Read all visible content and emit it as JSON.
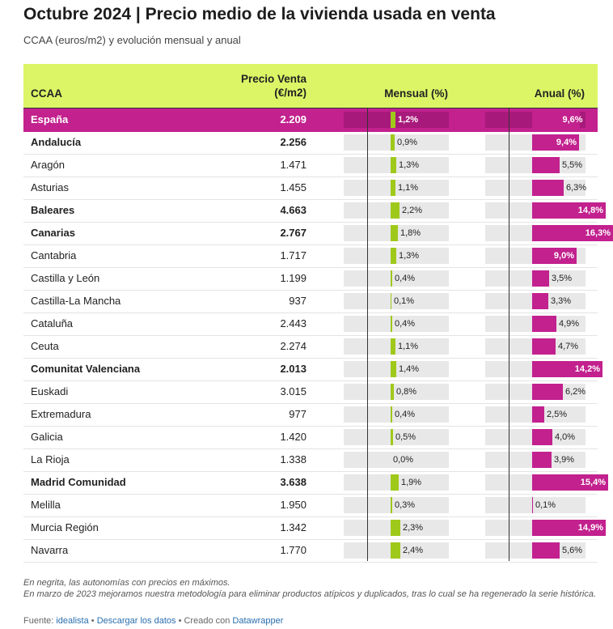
{
  "title": "Octubre 2024 | Precio medio de la vivienda usada en venta",
  "subtitle": "CCAA (euros/m2) y evolución mensual y anual",
  "columns": {
    "ccaa": "CCAA",
    "price_line1": "Precio Venta",
    "price_line2": "(€/m2)",
    "mensual": "Mensual (%)",
    "anual": "Anual (%)"
  },
  "colors": {
    "header_bg": "#dcf566",
    "highlight": "#c2218e",
    "mensual_bar": "#9fc91a",
    "anual_bar": "#c2218e"
  },
  "chart_data": {
    "type": "table",
    "scales": {
      "mensual_max": 2.4,
      "anual_max": 16.3
    },
    "rows": [
      {
        "ccaa": "España",
        "price": "2.209",
        "mensual": 1.2,
        "mensual_label": "1,2%",
        "anual": 9.6,
        "anual_label": "9,6%",
        "bold": true,
        "highlight": true
      },
      {
        "ccaa": "Andalucía",
        "price": "2.256",
        "mensual": 0.9,
        "mensual_label": "0,9%",
        "anual": 9.4,
        "anual_label": "9,4%",
        "bold": true
      },
      {
        "ccaa": "Aragón",
        "price": "1.471",
        "mensual": 1.3,
        "mensual_label": "1,3%",
        "anual": 5.5,
        "anual_label": "5,5%",
        "bold": false
      },
      {
        "ccaa": "Asturias",
        "price": "1.455",
        "mensual": 1.1,
        "mensual_label": "1,1%",
        "anual": 6.3,
        "anual_label": "6,3%",
        "bold": false
      },
      {
        "ccaa": "Baleares",
        "price": "4.663",
        "mensual": 2.2,
        "mensual_label": "2,2%",
        "anual": 14.8,
        "anual_label": "14,8%",
        "bold": true
      },
      {
        "ccaa": "Canarias",
        "price": "2.767",
        "mensual": 1.8,
        "mensual_label": "1,8%",
        "anual": 16.3,
        "anual_label": "16,3%",
        "bold": true
      },
      {
        "ccaa": "Cantabria",
        "price": "1.717",
        "mensual": 1.3,
        "mensual_label": "1,3%",
        "anual": 9.0,
        "anual_label": "9,0%",
        "bold": false
      },
      {
        "ccaa": "Castilla y León",
        "price": "1.199",
        "mensual": 0.4,
        "mensual_label": "0,4%",
        "anual": 3.5,
        "anual_label": "3,5%",
        "bold": false
      },
      {
        "ccaa": "Castilla-La Mancha",
        "price": "937",
        "mensual": 0.1,
        "mensual_label": "0,1%",
        "anual": 3.3,
        "anual_label": "3,3%",
        "bold": false
      },
      {
        "ccaa": "Cataluña",
        "price": "2.443",
        "mensual": 0.4,
        "mensual_label": "0,4%",
        "anual": 4.9,
        "anual_label": "4,9%",
        "bold": false
      },
      {
        "ccaa": "Ceuta",
        "price": "2.274",
        "mensual": 1.1,
        "mensual_label": "1,1%",
        "anual": 4.7,
        "anual_label": "4,7%",
        "bold": false
      },
      {
        "ccaa": "Comunitat Valenciana",
        "price": "2.013",
        "mensual": 1.4,
        "mensual_label": "1,4%",
        "anual": 14.2,
        "anual_label": "14,2%",
        "bold": true
      },
      {
        "ccaa": "Euskadi",
        "price": "3.015",
        "mensual": 0.8,
        "mensual_label": "0,8%",
        "anual": 6.2,
        "anual_label": "6,2%",
        "bold": false
      },
      {
        "ccaa": "Extremadura",
        "price": "977",
        "mensual": 0.4,
        "mensual_label": "0,4%",
        "anual": 2.5,
        "anual_label": "2,5%",
        "bold": false
      },
      {
        "ccaa": "Galicia",
        "price": "1.420",
        "mensual": 0.5,
        "mensual_label": "0,5%",
        "anual": 4.0,
        "anual_label": "4,0%",
        "bold": false
      },
      {
        "ccaa": "La Rioja",
        "price": "1.338",
        "mensual": 0.0,
        "mensual_label": "0,0%",
        "anual": 3.9,
        "anual_label": "3,9%",
        "bold": false
      },
      {
        "ccaa": "Madrid Comunidad",
        "price": "3.638",
        "mensual": 1.9,
        "mensual_label": "1,9%",
        "anual": 15.4,
        "anual_label": "15,4%",
        "bold": true
      },
      {
        "ccaa": "Melilla",
        "price": "1.950",
        "mensual": 0.3,
        "mensual_label": "0,3%",
        "anual": 0.1,
        "anual_label": "0,1%",
        "bold": false
      },
      {
        "ccaa": "Murcia Región",
        "price": "1.342",
        "mensual": 2.3,
        "mensual_label": "2,3%",
        "anual": 14.9,
        "anual_label": "14,9%",
        "bold": false
      },
      {
        "ccaa": "Navarra",
        "price": "1.770",
        "mensual": 2.4,
        "mensual_label": "2,4%",
        "anual": 5.6,
        "anual_label": "5,6%",
        "bold": false
      }
    ]
  },
  "notes": {
    "line1": "En negrita, las autonomías con precios en máximos.",
    "line2": "En marzo de 2023 mejoramos nuestra metodología para eliminar productos atípicos y duplicados, tras lo cual se ha regenerado la serie histórica."
  },
  "source": {
    "prefix": "Fuente: ",
    "source_link": "idealista",
    "sep1": " • ",
    "download_link": "Descargar los datos",
    "sep2": " • Creado con ",
    "creator_link": "Datawrapper"
  }
}
